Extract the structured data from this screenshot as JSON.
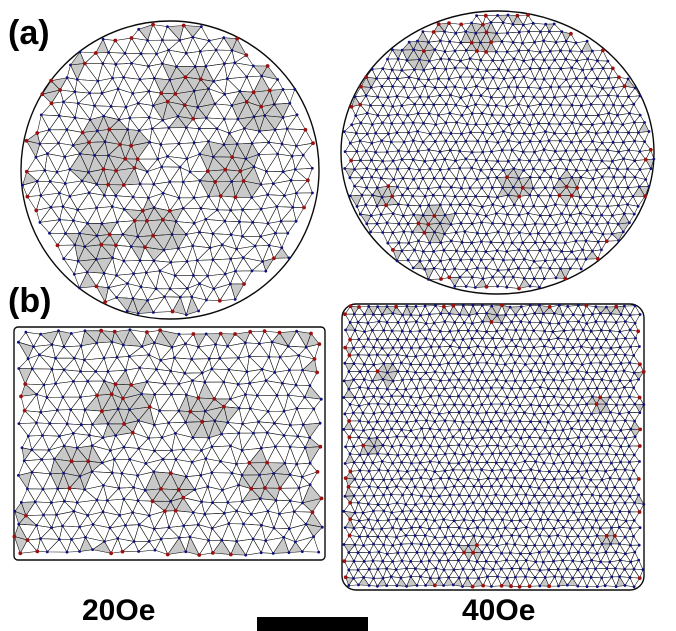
{
  "figure": {
    "panel_labels": [
      "(a)",
      "(b)"
    ],
    "field_labels": [
      "20Oe",
      "40Oe"
    ],
    "colors": {
      "edge": "#0a0a0a",
      "node_six_coordinated": "#0b0f82",
      "node_defect": "#9b1010",
      "defect_shading": "#c9c9c9",
      "background": "#ffffff"
    }
  }
}
